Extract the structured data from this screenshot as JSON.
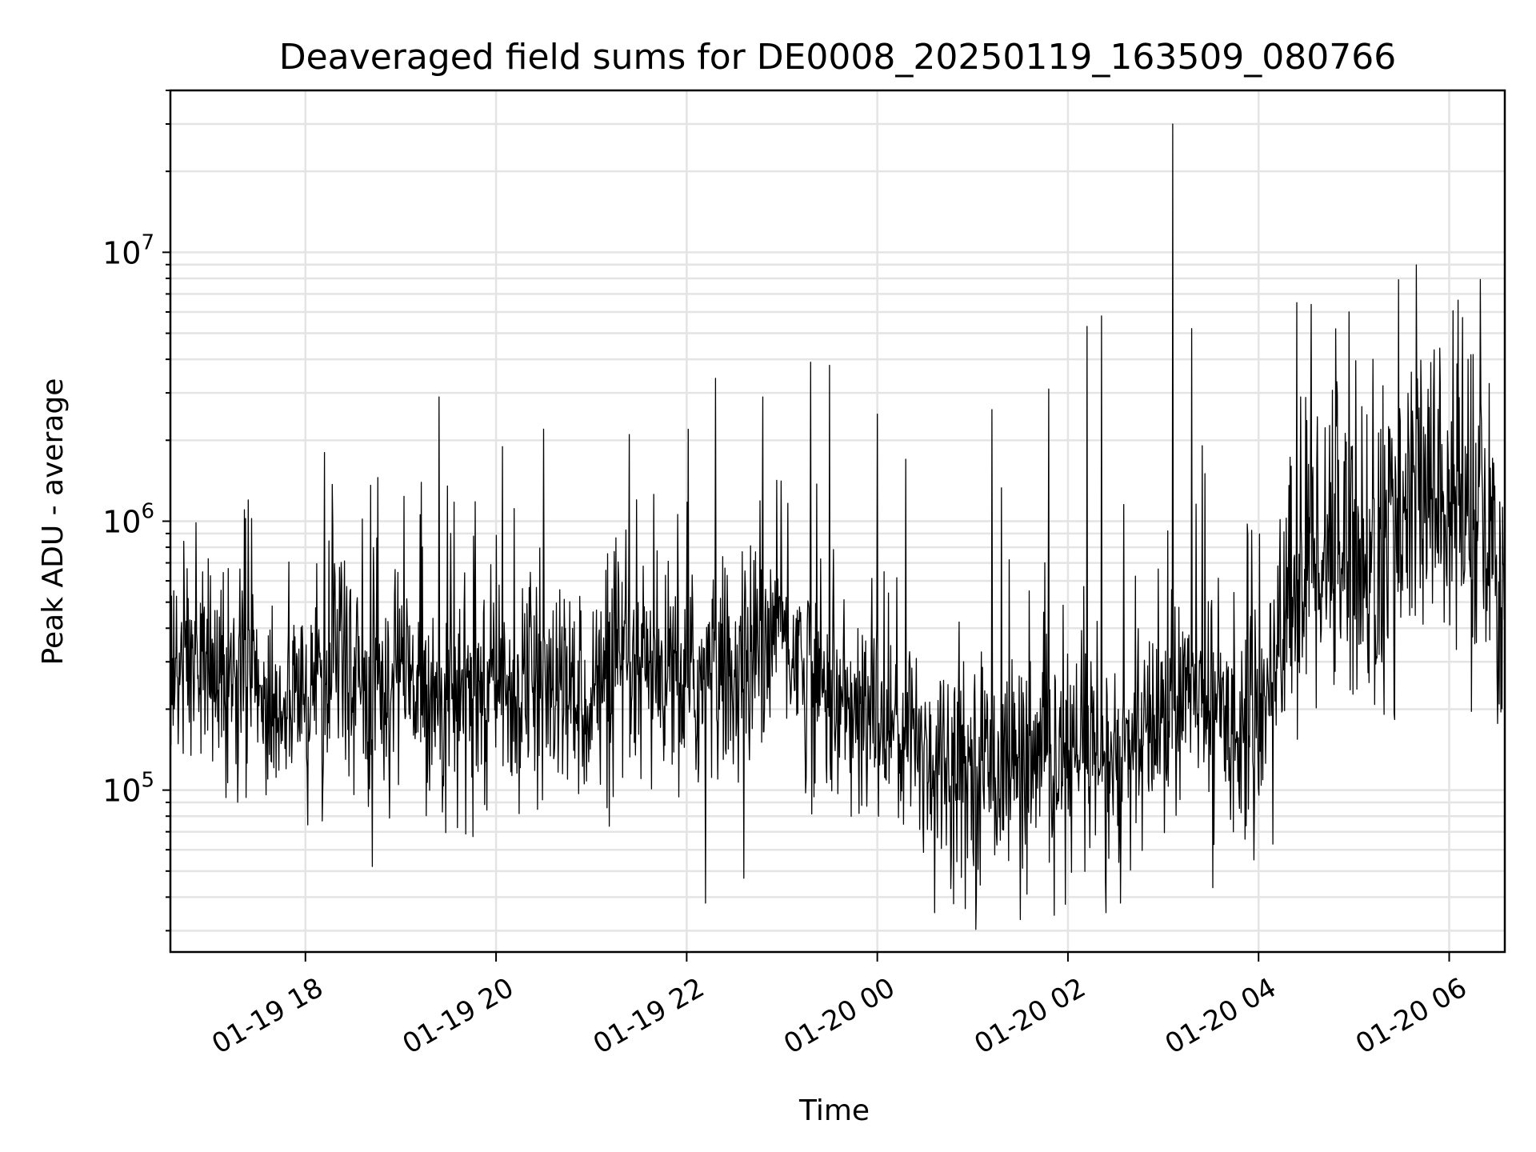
{
  "chart_data": {
    "type": "line",
    "title": "Deaveraged field sums for DE0008_20250119_163509_080766",
    "xlabel": "Time",
    "ylabel": "Peak ADU - average",
    "x_range": [
      "2025-01-19 16:35",
      "2025-01-20 06:35"
    ],
    "y_scale": "log",
    "ylim": [
      25000,
      40000000
    ],
    "x_ticks": [
      {
        "time": "2025-01-19 18:00",
        "label": "01-19 18"
      },
      {
        "time": "2025-01-19 20:00",
        "label": "01-19 20"
      },
      {
        "time": "2025-01-19 22:00",
        "label": "01-19 22"
      },
      {
        "time": "2025-01-20 00:00",
        "label": "01-20 00"
      },
      {
        "time": "2025-01-20 02:00",
        "label": "01-20 02"
      },
      {
        "time": "2025-01-20 04:00",
        "label": "01-20 04"
      },
      {
        "time": "2025-01-20 06:00",
        "label": "01-20 06"
      }
    ],
    "y_ticks": [
      {
        "value": 100000,
        "base": "10",
        "exp": "5"
      },
      {
        "value": 1000000,
        "base": "10",
        "exp": "6"
      },
      {
        "value": 10000000,
        "base": "10",
        "exp": "7"
      }
    ],
    "grid": true,
    "line_color": "#000000",
    "series": [
      {
        "values": [
          [
            16.6,
            250000
          ],
          [
            16.75,
            320000
          ],
          [
            17.0,
            280000
          ],
          [
            17.25,
            240000
          ],
          [
            17.5,
            230000
          ],
          [
            17.75,
            200000
          ],
          [
            18.0,
            230000
          ],
          [
            18.25,
            270000
          ],
          [
            18.5,
            280000
          ],
          [
            18.75,
            250000
          ],
          [
            19.0,
            270000
          ],
          [
            19.25,
            240000
          ],
          [
            19.5,
            210000
          ],
          [
            19.75,
            230000
          ],
          [
            20.0,
            240000
          ],
          [
            20.25,
            230000
          ],
          [
            20.5,
            240000
          ],
          [
            20.75,
            220000
          ],
          [
            21.0,
            230000
          ],
          [
            21.25,
            240000
          ],
          [
            21.5,
            260000
          ],
          [
            21.75,
            250000
          ],
          [
            22.0,
            250000
          ],
          [
            22.25,
            260000
          ],
          [
            22.5,
            260000
          ],
          [
            22.75,
            330000
          ],
          [
            23.0,
            400000
          ],
          [
            23.25,
            280000
          ],
          [
            23.5,
            220000
          ],
          [
            23.75,
            180000
          ],
          [
            24.0,
            190000
          ],
          [
            24.25,
            170000
          ],
          [
            24.5,
            140000
          ],
          [
            24.75,
            130000
          ],
          [
            25.0,
            120000
          ],
          [
            25.25,
            130000
          ],
          [
            25.5,
            130000
          ],
          [
            25.75,
            120000
          ],
          [
            26.0,
            130000
          ],
          [
            26.25,
            130000
          ],
          [
            26.5,
            120000
          ],
          [
            26.75,
            140000
          ],
          [
            27.0,
            200000
          ],
          [
            27.25,
            230000
          ],
          [
            27.5,
            210000
          ],
          [
            27.75,
            180000
          ],
          [
            28.0,
            190000
          ],
          [
            28.25,
            400000
          ],
          [
            28.5,
            700000
          ],
          [
            28.75,
            900000
          ],
          [
            29.0,
            800000
          ],
          [
            29.25,
            650000
          ],
          [
            29.5,
            1100000
          ],
          [
            29.75,
            1200000
          ],
          [
            30.0,
            1200000
          ],
          [
            30.25,
            1000000
          ],
          [
            30.5,
            600000
          ],
          [
            30.58,
            500000
          ]
        ],
        "spikes": [
          [
            17.4,
            1200000
          ],
          [
            18.2,
            1800000
          ],
          [
            19.4,
            2900000
          ],
          [
            20.5,
            2200000
          ],
          [
            21.4,
            2100000
          ],
          [
            22.3,
            3400000
          ],
          [
            22.8,
            2900000
          ],
          [
            23.3,
            3900000
          ],
          [
            23.5,
            3800000
          ],
          [
            24.0,
            2500000
          ],
          [
            24.3,
            1700000
          ],
          [
            25.2,
            2600000
          ],
          [
            25.8,
            3100000
          ],
          [
            26.2,
            5300000
          ],
          [
            26.35,
            5800000
          ],
          [
            27.1,
            30000000
          ],
          [
            27.3,
            5200000
          ],
          [
            28.4,
            6500000
          ],
          [
            28.55,
            6400000
          ],
          [
            28.95,
            6000000
          ],
          [
            29.2,
            4000000
          ],
          [
            29.9,
            4400000
          ],
          [
            30.2,
            4000000
          ]
        ],
        "dips": [
          [
            18.7,
            52000
          ],
          [
            22.2,
            38000
          ],
          [
            22.6,
            47000
          ],
          [
            24.6,
            35000
          ],
          [
            25.5,
            33000
          ],
          [
            26.4,
            35000
          ],
          [
            26.55,
            38000
          ],
          [
            27.95,
            55000
          ],
          [
            28.15,
            63000
          ]
        ]
      }
    ]
  }
}
